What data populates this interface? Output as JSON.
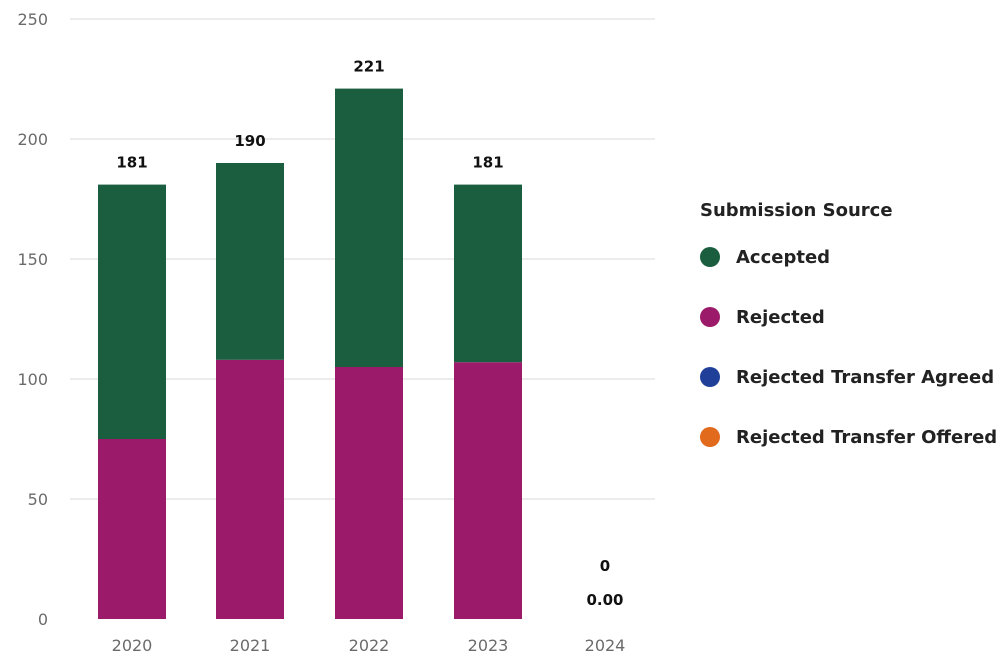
{
  "chart_data": {
    "type": "bar",
    "stacked": true,
    "categories": [
      "2020",
      "2021",
      "2022",
      "2023",
      "2024"
    ],
    "series": [
      {
        "name": "Rejected",
        "color": "#9b1b6a",
        "values": [
          75,
          108,
          105,
          107,
          0
        ]
      },
      {
        "name": "Accepted",
        "color": "#1a5e3f",
        "values": [
          106,
          82,
          116,
          74,
          0
        ]
      },
      {
        "name": "Rejected Transfer Agreed",
        "color": "#1f3f99",
        "values": [
          0,
          0,
          0,
          0,
          0
        ]
      },
      {
        "name": "Rejected Transfer Offered",
        "color": "#e26a1c",
        "values": [
          0,
          0,
          0,
          0,
          0
        ]
      }
    ],
    "totals": [
      "181",
      "190",
      "221",
      "181",
      "0"
    ],
    "extra_labels": [
      {
        "category": "2024",
        "text": "0.00"
      }
    ],
    "ylim": [
      0,
      250
    ],
    "yticks": [
      0,
      50,
      100,
      150,
      200,
      250
    ],
    "grid": true,
    "legend": {
      "title": "Submission Source",
      "placement": "right",
      "items": [
        {
          "label": "Accepted",
          "color": "#1a5e3f"
        },
        {
          "label": "Rejected",
          "color": "#9b1b6a"
        },
        {
          "label": "Rejected Transfer Agreed",
          "color": "#1f3f99"
        },
        {
          "label": "Rejected Transfer Offered",
          "color": "#e26a1c"
        }
      ]
    },
    "xlabel": "",
    "ylabel": ""
  }
}
